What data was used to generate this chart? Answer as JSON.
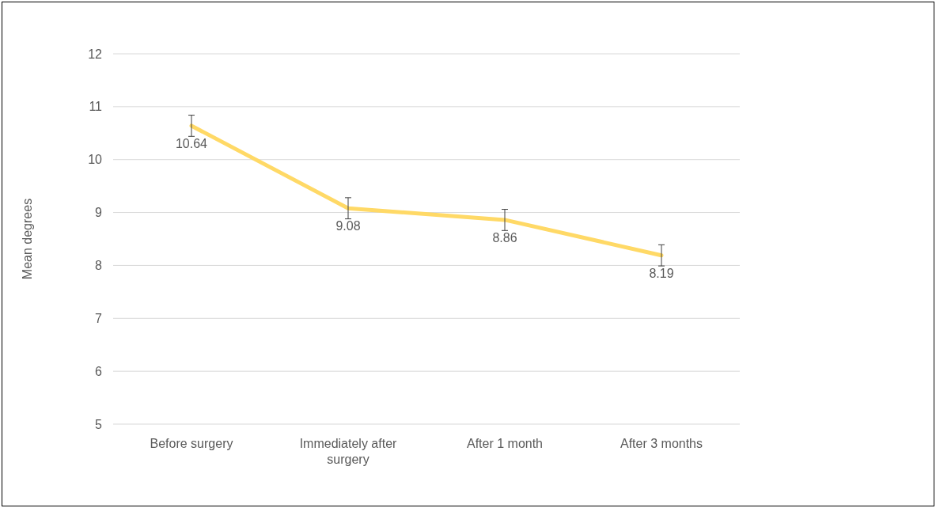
{
  "chart_data": {
    "type": "line",
    "ylabel": "Mean degrees",
    "categories": [
      "Before surgery",
      "Immediately after surgery",
      "After 1 month",
      "After 3 months"
    ],
    "series": [
      {
        "color": "#ffd966",
        "values": [
          10.64,
          9.08,
          8.86,
          8.19
        ],
        "errors": [
          0.2,
          0.2,
          0.2,
          0.2
        ]
      }
    ],
    "ylim": [
      5,
      12
    ],
    "yticks": [
      5,
      6,
      7,
      8,
      9,
      10,
      11,
      12
    ],
    "grid": "y",
    "data_labels": true,
    "marker": "none"
  }
}
